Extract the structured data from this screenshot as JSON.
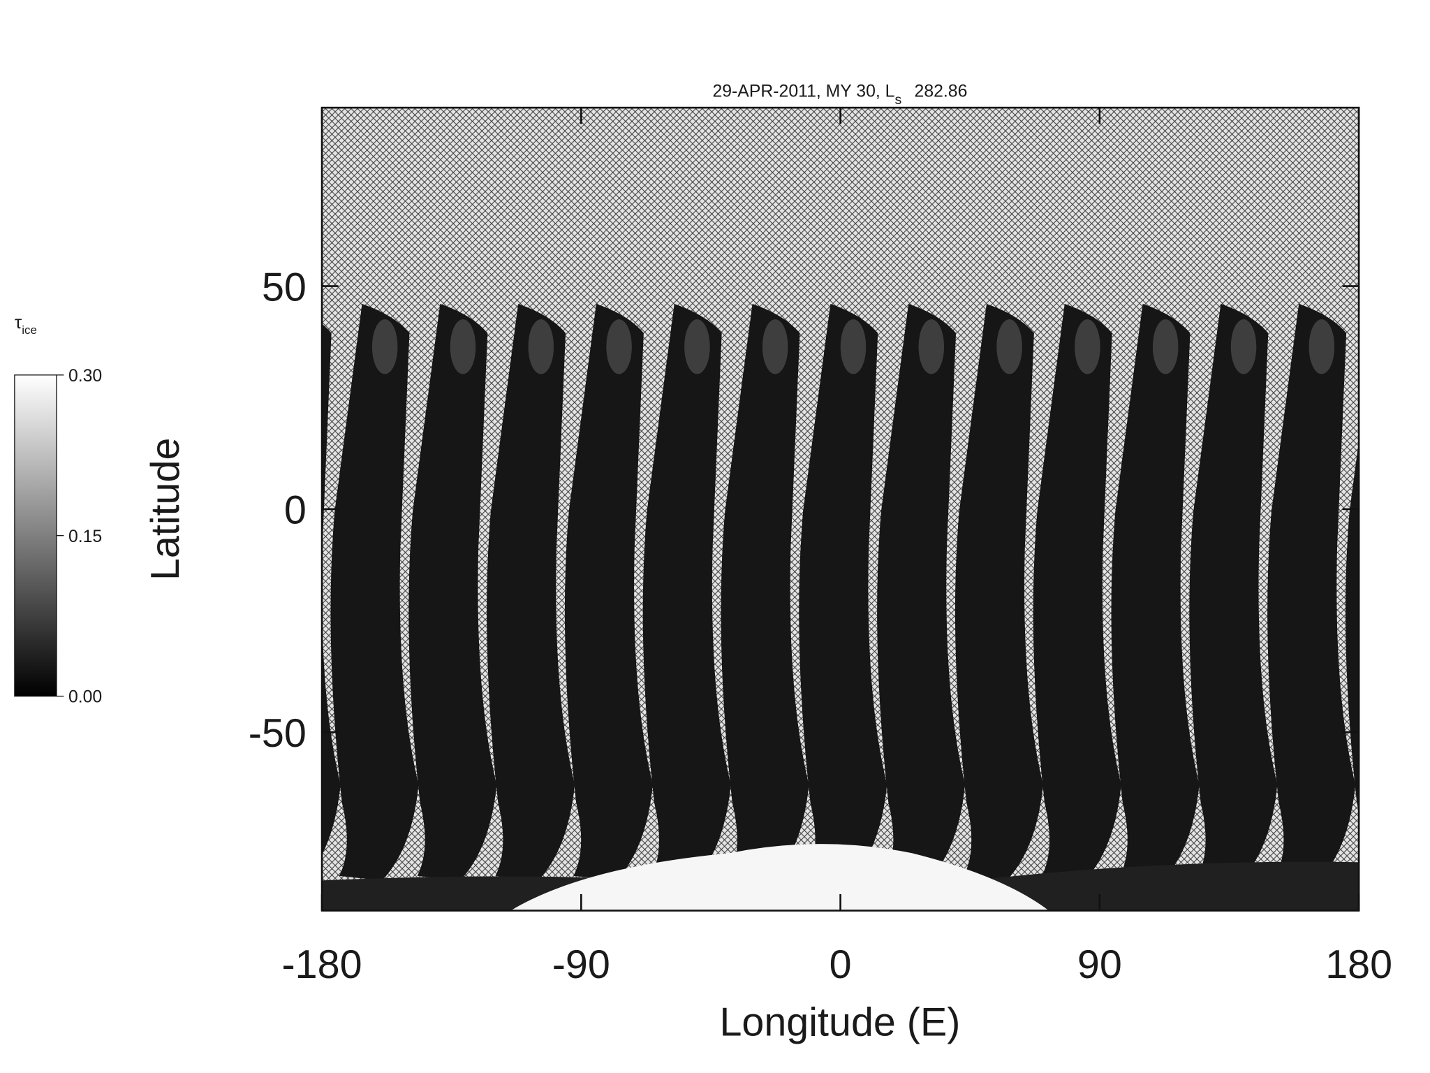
{
  "chart_data": {
    "type": "heatmap",
    "title": [
      "29-APR-2011, MY 30,  L",
      "s",
      "282.86"
    ],
    "xlabel": "Longitude (E)",
    "ylabel": "Latitude",
    "xlim": [
      -180,
      180
    ],
    "ylim": [
      -90,
      90
    ],
    "xticks": [
      -180,
      -90,
      0,
      90,
      180
    ],
    "yticks": [
      -50,
      0,
      50
    ],
    "colorbar": {
      "label": "τ",
      "label_sub": "ice",
      "lim": [
        0,
        0.3
      ],
      "ticks": [
        {
          "value": 0,
          "label": "0.00"
        },
        {
          "value": 0.15,
          "label": "0.15"
        },
        {
          "value": 0.3,
          "label": "0.30"
        }
      ],
      "colors": [
        "#000000",
        "#ffffff"
      ]
    }
  }
}
